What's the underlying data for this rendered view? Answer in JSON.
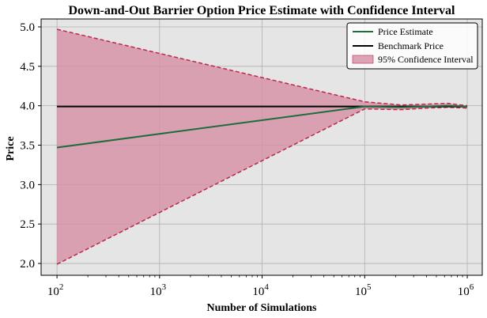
{
  "chart_data": {
    "type": "line",
    "title": "Down-and-Out Barrier Option Price Estimate with Confidence Interval",
    "xlabel": "Number of Simulations",
    "ylabel": "Price",
    "xscale": "log",
    "xlim": [
      70,
      1400000
    ],
    "ylim": [
      1.85,
      5.1
    ],
    "yticks": [
      2.0,
      2.5,
      3.0,
      3.5,
      4.0,
      4.5,
      5.0
    ],
    "ytick_labels": [
      "2.0",
      "2.5",
      "3.0",
      "3.5",
      "4.0",
      "4.5",
      "5.0"
    ],
    "xticks": [
      {
        "value": 100,
        "base": "10",
        "exp": "2"
      },
      {
        "value": 1000,
        "base": "10",
        "exp": "3"
      },
      {
        "value": 10000,
        "base": "10",
        "exp": "4"
      },
      {
        "value": 100000,
        "base": "10",
        "exp": "5"
      },
      {
        "value": 1000000,
        "base": "10",
        "exp": "6"
      }
    ],
    "grid": true,
    "legend_position": "top-right",
    "colors": {
      "background": "#e5e5e5",
      "price_estimate": "#1e6b3c",
      "benchmark": "#000000",
      "ci_fill": "#d48ea2",
      "ci_edge": "#c0244b",
      "grid": "#b0b0b0"
    },
    "legend": {
      "price_estimate": "Price Estimate",
      "benchmark": "Benchmark Price",
      "ci": "95% Confidence Interval"
    },
    "benchmark_value": 3.99,
    "x": [
      100,
      100000,
      225000,
      400000,
      650000,
      1000000
    ],
    "series": [
      {
        "name": "Price Estimate",
        "values": [
          3.47,
          3.99,
          3.98,
          3.99,
          4.0,
          3.99
        ]
      },
      {
        "name": "95% Confidence Interval (upper)",
        "values": [
          4.97,
          4.05,
          4.01,
          4.02,
          4.03,
          4.0
        ]
      },
      {
        "name": "95% Confidence Interval (lower)",
        "values": [
          1.99,
          3.96,
          3.95,
          3.97,
          3.98,
          3.97
        ]
      }
    ]
  }
}
